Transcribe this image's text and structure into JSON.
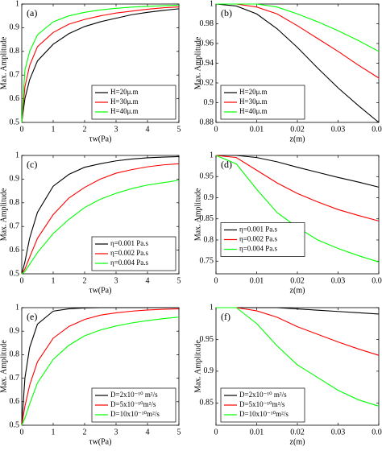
{
  "chart_data": [
    {
      "type": "line",
      "panel_label": "(a)",
      "xlabel": "τw(Pa)",
      "ylabel": "Max. Amplitude",
      "x": [
        0,
        0.1,
        0.25,
        0.5,
        1,
        1.5,
        2,
        2.5,
        3,
        3.5,
        4,
        4.5,
        5
      ],
      "series": [
        {
          "name": "H=20μ.m",
          "color": "#000000",
          "values": [
            0.5,
            0.6,
            0.68,
            0.76,
            0.83,
            0.875,
            0.905,
            0.925,
            0.94,
            0.955,
            0.965,
            0.973,
            0.98
          ]
        },
        {
          "name": "H=30μ.m",
          "color": "#ff0000",
          "values": [
            0.5,
            0.65,
            0.74,
            0.82,
            0.88,
            0.915,
            0.935,
            0.95,
            0.962,
            0.97,
            0.978,
            0.984,
            0.988
          ]
        },
        {
          "name": "H=40μ.m",
          "color": "#00ff00",
          "values": [
            0.5,
            0.72,
            0.8,
            0.87,
            0.925,
            0.95,
            0.965,
            0.975,
            0.982,
            0.987,
            0.99,
            0.993,
            0.995
          ]
        }
      ],
      "xlim": [
        0,
        5
      ],
      "xticks": [
        0,
        1,
        2,
        3,
        4,
        5
      ],
      "ylim": [
        0.5,
        1
      ],
      "yticks": [
        0.5,
        0.6,
        0.7,
        0.8,
        0.9,
        1
      ],
      "legend": "lower right"
    },
    {
      "type": "line",
      "panel_label": "(b)",
      "xlabel": "z(m)",
      "ylabel": "Max. Amplitude",
      "x": [
        0,
        0.005,
        0.01,
        0.015,
        0.02,
        0.025,
        0.03,
        0.035,
        0.04
      ],
      "series": [
        {
          "name": "H=20μ.m",
          "color": "#000000",
          "values": [
            1,
            0.998,
            0.99,
            0.975,
            0.956,
            0.935,
            0.915,
            0.897,
            0.88
          ]
        },
        {
          "name": "H=30μ.m",
          "color": "#ff0000",
          "values": [
            1,
            1,
            0.997,
            0.99,
            0.978,
            0.965,
            0.952,
            0.938,
            0.925
          ]
        },
        {
          "name": "H=40μ.m",
          "color": "#00ff00",
          "values": [
            1,
            1,
            1,
            0.997,
            0.99,
            0.982,
            0.973,
            0.963,
            0.952
          ]
        }
      ],
      "xlim": [
        0,
        0.04
      ],
      "xticks": [
        0,
        0.01,
        0.02,
        0.03,
        0.04
      ],
      "ylim": [
        0.88,
        1
      ],
      "yticks": [
        0.88,
        0.9,
        0.92,
        0.94,
        0.96,
        0.98,
        1
      ],
      "legend": "lower left"
    },
    {
      "type": "line",
      "panel_label": "(c)",
      "xlabel": "τw(Pa)",
      "ylabel": "Max. Amplitude",
      "x": [
        0,
        0.1,
        0.25,
        0.5,
        1,
        1.5,
        2,
        2.5,
        3,
        3.5,
        4,
        4.5,
        5
      ],
      "series": [
        {
          "name": "η=0.001 Pa.s",
          "color": "#000000",
          "values": [
            0.5,
            0.55,
            0.65,
            0.76,
            0.87,
            0.92,
            0.95,
            0.965,
            0.977,
            0.985,
            0.99,
            0.993,
            0.995
          ]
        },
        {
          "name": "η=0.002 Pa.s",
          "color": "#ff0000",
          "values": [
            0.5,
            0.52,
            0.57,
            0.65,
            0.75,
            0.82,
            0.865,
            0.9,
            0.925,
            0.94,
            0.952,
            0.96,
            0.965
          ]
        },
        {
          "name": "η=0.004 Pa.s",
          "color": "#00ff00",
          "values": [
            0.5,
            0.51,
            0.54,
            0.59,
            0.67,
            0.73,
            0.78,
            0.815,
            0.84,
            0.86,
            0.875,
            0.885,
            0.895
          ]
        }
      ],
      "xlim": [
        0,
        5
      ],
      "xticks": [
        0,
        1,
        2,
        3,
        4,
        5
      ],
      "ylim": [
        0.5,
        1
      ],
      "yticks": [
        0.5,
        0.6,
        0.7,
        0.8,
        0.9,
        1
      ],
      "legend": "lower right"
    },
    {
      "type": "line",
      "panel_label": "(d)",
      "xlabel": "z(m)",
      "ylabel": "Max. Amplitude",
      "x": [
        0,
        0.005,
        0.01,
        0.015,
        0.02,
        0.025,
        0.03,
        0.035,
        0.04
      ],
      "series": [
        {
          "name": "η=0.001 Pa.s",
          "color": "#000000",
          "values": [
            1,
            1,
            0.995,
            0.985,
            0.972,
            0.96,
            0.948,
            0.937,
            0.925
          ]
        },
        {
          "name": "η=0.002 Pa.s",
          "color": "#ff0000",
          "values": [
            1,
            0.995,
            0.965,
            0.935,
            0.91,
            0.89,
            0.872,
            0.858,
            0.845
          ]
        },
        {
          "name": "η=0.004 Pa.s",
          "color": "#00ff00",
          "values": [
            1,
            0.98,
            0.92,
            0.865,
            0.83,
            0.8,
            0.78,
            0.763,
            0.748
          ]
        }
      ],
      "xlim": [
        0,
        0.04
      ],
      "xticks": [
        0,
        0.01,
        0.02,
        0.03,
        0.04
      ],
      "ylim": [
        0.72,
        1
      ],
      "yticks": [
        0.75,
        0.8,
        0.85,
        0.9,
        0.95,
        1
      ],
      "legend": "center left"
    },
    {
      "type": "line",
      "panel_label": "(e)",
      "xlabel": "τw(Pa)",
      "ylabel": "Max. Amplitude",
      "x": [
        0,
        0.1,
        0.25,
        0.5,
        1,
        1.5,
        2,
        2.5,
        3,
        3.5,
        4,
        4.5,
        5
      ],
      "series": [
        {
          "name": "D=2x10⁻¹⁰ m²/s",
          "color": "#000000",
          "values": [
            0.5,
            0.7,
            0.83,
            0.93,
            0.985,
            0.995,
            0.999,
            1,
            1,
            1,
            1,
            1,
            1
          ]
        },
        {
          "name": "D=5x10⁻¹⁰m²/s",
          "color": "#ff0000",
          "values": [
            0.5,
            0.58,
            0.67,
            0.77,
            0.87,
            0.92,
            0.95,
            0.968,
            0.978,
            0.985,
            0.99,
            0.993,
            0.995
          ]
        },
        {
          "name": "D=10x10⁻¹⁰m²/s",
          "color": "#00ff00",
          "values": [
            0.5,
            0.53,
            0.59,
            0.68,
            0.78,
            0.84,
            0.88,
            0.905,
            0.922,
            0.935,
            0.945,
            0.953,
            0.96
          ]
        }
      ],
      "xlim": [
        0,
        5
      ],
      "xticks": [
        0,
        1,
        2,
        3,
        4,
        5
      ],
      "ylim": [
        0.5,
        1
      ],
      "yticks": [
        0.5,
        0.6,
        0.7,
        0.8,
        0.9,
        1
      ],
      "legend": "lower right"
    },
    {
      "type": "line",
      "panel_label": "(f)",
      "xlabel": "z(m)",
      "ylabel": "Max. Amplitude",
      "x": [
        0,
        0.005,
        0.01,
        0.015,
        0.02,
        0.025,
        0.03,
        0.035,
        0.04
      ],
      "series": [
        {
          "name": "D=2x10⁻¹⁰ m²/s",
          "color": "#000000",
          "values": [
            1,
            1,
            1,
            1,
            0.998,
            0.996,
            0.994,
            0.992,
            0.99
          ]
        },
        {
          "name": "D=5x10⁻¹⁰m²/s",
          "color": "#ff0000",
          "values": [
            1,
            1,
            0.995,
            0.985,
            0.97,
            0.958,
            0.946,
            0.935,
            0.925
          ]
        },
        {
          "name": "D=10x10⁻¹⁰m²/s",
          "color": "#00ff00",
          "values": [
            1,
            1,
            0.975,
            0.94,
            0.91,
            0.89,
            0.87,
            0.855,
            0.845
          ]
        }
      ],
      "xlim": [
        0,
        0.04
      ],
      "xticks": [
        0,
        0.01,
        0.02,
        0.03,
        0.04
      ],
      "ylim": [
        0.815,
        1
      ],
      "yticks": [
        0.85,
        0.9,
        0.95,
        1
      ],
      "legend": "lower left"
    }
  ]
}
